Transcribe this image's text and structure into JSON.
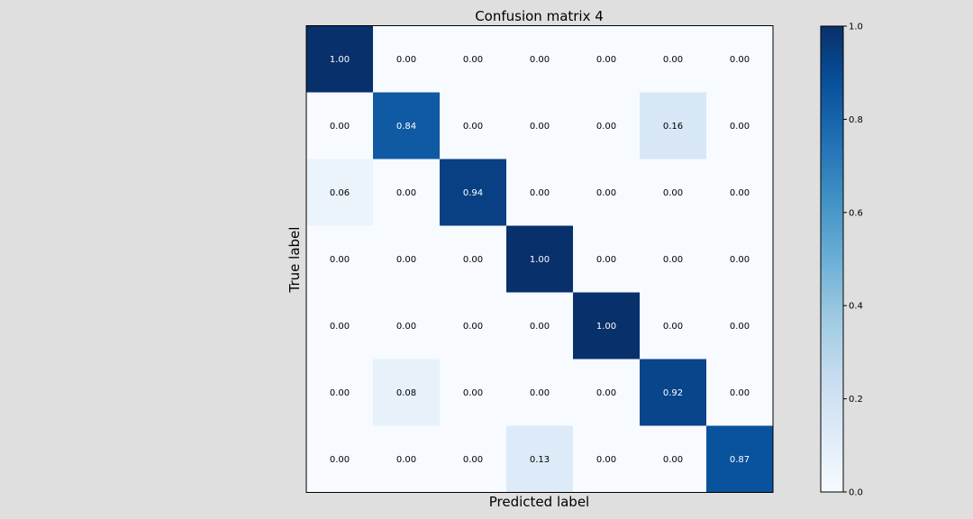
{
  "chart_data": {
    "type": "heatmap",
    "title": "Confusion matrix 4",
    "xlabel": "Predicted label",
    "ylabel": "True label",
    "colormap": "Blues",
    "vmin": 0.0,
    "vmax": 1.0,
    "colorbar_ticks": [
      "0.0",
      "0.2",
      "0.4",
      "0.6",
      "0.8",
      "1.0"
    ],
    "matrix": [
      [
        1.0,
        0.0,
        0.0,
        0.0,
        0.0,
        0.0,
        0.0
      ],
      [
        0.0,
        0.84,
        0.0,
        0.0,
        0.0,
        0.16,
        0.0
      ],
      [
        0.06,
        0.0,
        0.94,
        0.0,
        0.0,
        0.0,
        0.0
      ],
      [
        0.0,
        0.0,
        0.0,
        1.0,
        0.0,
        0.0,
        0.0
      ],
      [
        0.0,
        0.0,
        0.0,
        0.0,
        1.0,
        0.0,
        0.0
      ],
      [
        0.0,
        0.08,
        0.0,
        0.0,
        0.0,
        0.92,
        0.0
      ],
      [
        0.0,
        0.0,
        0.0,
        0.13,
        0.0,
        0.0,
        0.87
      ]
    ],
    "cell_labels": [
      [
        "1.00",
        "0.00",
        "0.00",
        "0.00",
        "0.00",
        "0.00",
        "0.00"
      ],
      [
        "0.00",
        "0.84",
        "0.00",
        "0.00",
        "0.00",
        "0.16",
        "0.00"
      ],
      [
        "0.06",
        "0.00",
        "0.94",
        "0.00",
        "0.00",
        "0.00",
        "0.00"
      ],
      [
        "0.00",
        "0.00",
        "0.00",
        "1.00",
        "0.00",
        "0.00",
        "0.00"
      ],
      [
        "0.00",
        "0.00",
        "0.00",
        "0.00",
        "1.00",
        "0.00",
        "0.00"
      ],
      [
        "0.00",
        "0.08",
        "0.00",
        "0.00",
        "0.00",
        "0.92",
        "0.00"
      ],
      [
        "0.00",
        "0.00",
        "0.00",
        "0.13",
        "0.00",
        "0.00",
        "0.87"
      ]
    ],
    "grid": false
  }
}
